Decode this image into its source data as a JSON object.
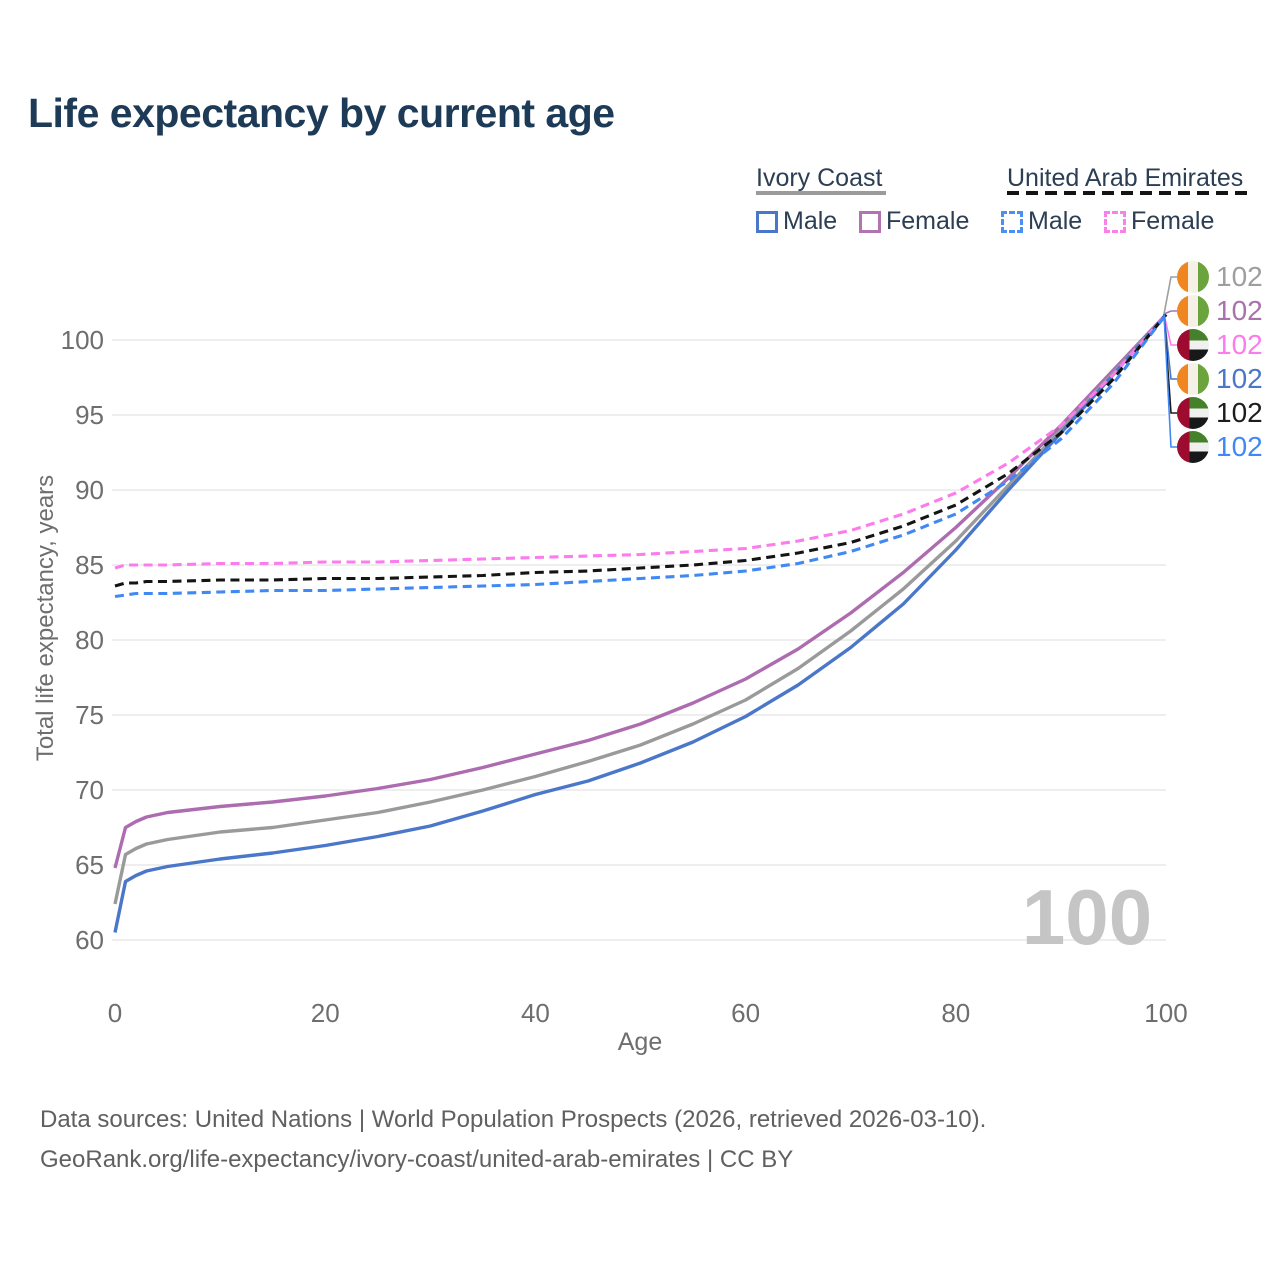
{
  "title": "Life expectancy by current age",
  "watermark_age": "100",
  "legend": {
    "groups": [
      {
        "label": "Ivory Coast",
        "line_style": "solid",
        "items": [
          {
            "label": "Male",
            "color": "#4a77c9"
          },
          {
            "label": "Female",
            "color": "#b173b1"
          }
        ]
      },
      {
        "label": "United Arab Emirates",
        "line_style": "dashed",
        "items": [
          {
            "label": "Male",
            "color": "#4a90f4"
          },
          {
            "label": "Female",
            "color": "#fb80ec"
          }
        ]
      }
    ]
  },
  "footer": {
    "line1": "Data sources: United Nations | World Population Prospects (2026, retrieved 2026-03-10).",
    "line2": "GeoRank.org/life-expectancy/ivory-coast/united-arab-emirates | CC BY"
  },
  "chart_data": {
    "type": "line",
    "title": "Life expectancy by current age",
    "xlabel": "Age",
    "ylabel": "Total life expectancy, years",
    "xlim": [
      0,
      100
    ],
    "ylim": [
      58,
      103
    ],
    "x_ticks": [
      0,
      20,
      40,
      60,
      80,
      100
    ],
    "y_ticks": [
      60,
      65,
      70,
      75,
      80,
      85,
      90,
      95,
      100
    ],
    "grid": "horizontal-only",
    "x": [
      0,
      1,
      2,
      3,
      5,
      10,
      15,
      20,
      25,
      30,
      35,
      40,
      45,
      50,
      55,
      60,
      65,
      70,
      75,
      80,
      85,
      90,
      95,
      100
    ],
    "series": [
      {
        "name": "Ivory Coast — Female",
        "country": "Ivory Coast",
        "sex": "Female",
        "style": "solid",
        "color": "#ad6cb0",
        "values": [
          64.8,
          67.5,
          67.9,
          68.2,
          68.5,
          68.9,
          69.2,
          69.6,
          70.1,
          70.7,
          71.5,
          72.4,
          73.3,
          74.4,
          75.8,
          77.4,
          79.4,
          81.8,
          84.5,
          87.5,
          90.8,
          94.3,
          98.0,
          101.7
        ]
      },
      {
        "name": "Ivory Coast — Total",
        "country": "Ivory Coast",
        "sex": "Total",
        "style": "solid",
        "color": "#9a9a9a",
        "values": [
          62.4,
          65.7,
          66.1,
          66.4,
          66.7,
          67.2,
          67.5,
          68.0,
          68.5,
          69.2,
          70.0,
          70.9,
          71.9,
          73.0,
          74.4,
          76.0,
          78.1,
          80.6,
          83.4,
          86.6,
          90.3,
          94.0,
          97.8,
          101.7
        ]
      },
      {
        "name": "Ivory Coast — Male",
        "country": "Ivory Coast",
        "sex": "Male",
        "style": "solid",
        "color": "#4a77c9",
        "values": [
          60.5,
          63.9,
          64.3,
          64.6,
          64.9,
          65.4,
          65.8,
          66.3,
          66.9,
          67.6,
          68.6,
          69.7,
          70.6,
          71.8,
          73.2,
          74.9,
          77.0,
          79.5,
          82.4,
          86.0,
          90.0,
          93.8,
          97.7,
          101.7
        ]
      },
      {
        "name": "United Arab Emirates — Female",
        "country": "United Arab Emirates",
        "sex": "Female",
        "style": "dashed",
        "color": "#fc7cee",
        "values": [
          84.8,
          85.0,
          85.0,
          85.0,
          85.0,
          85.1,
          85.1,
          85.2,
          85.2,
          85.3,
          85.4,
          85.5,
          85.6,
          85.7,
          85.9,
          86.1,
          86.6,
          87.3,
          88.4,
          89.8,
          91.8,
          94.3,
          97.7,
          101.7
        ]
      },
      {
        "name": "United Arab Emirates — Total",
        "country": "United Arab Emirates",
        "sex": "Total",
        "style": "dashed",
        "color": "#141414",
        "values": [
          83.6,
          83.8,
          83.8,
          83.9,
          83.9,
          84.0,
          84.0,
          84.1,
          84.1,
          84.2,
          84.3,
          84.5,
          84.6,
          84.8,
          85.0,
          85.3,
          85.8,
          86.5,
          87.6,
          89.0,
          91.1,
          93.8,
          97.4,
          101.7
        ]
      },
      {
        "name": "United Arab Emirates — Male",
        "country": "United Arab Emirates",
        "sex": "Male",
        "style": "dashed",
        "color": "#4089f5",
        "values": [
          82.9,
          83.0,
          83.1,
          83.1,
          83.1,
          83.2,
          83.3,
          83.3,
          83.4,
          83.5,
          83.6,
          83.7,
          83.9,
          84.1,
          84.3,
          84.6,
          85.1,
          85.9,
          87.0,
          88.4,
          90.6,
          93.4,
          97.1,
          101.7
        ]
      }
    ],
    "end_labels": [
      {
        "value": "102",
        "color": "#9e9e9e",
        "flag": "ivory-coast",
        "series": "Ivory Coast — Total"
      },
      {
        "value": "102",
        "color": "#a873ab",
        "flag": "ivory-coast",
        "series": "Ivory Coast — Female"
      },
      {
        "value": "102",
        "color": "#fc7cee",
        "flag": "united-arab-emirates",
        "series": "United Arab Emirates — Female"
      },
      {
        "value": "102",
        "color": "#4a77c9",
        "flag": "ivory-coast",
        "series": "Ivory Coast — Male"
      },
      {
        "value": "102",
        "color": "#1d1d1d",
        "flag": "united-arab-emirates",
        "series": "United Arab Emirates — Total"
      },
      {
        "value": "102",
        "color": "#4089f5",
        "flag": "united-arab-emirates",
        "series": "United Arab Emirates — Male"
      }
    ]
  }
}
